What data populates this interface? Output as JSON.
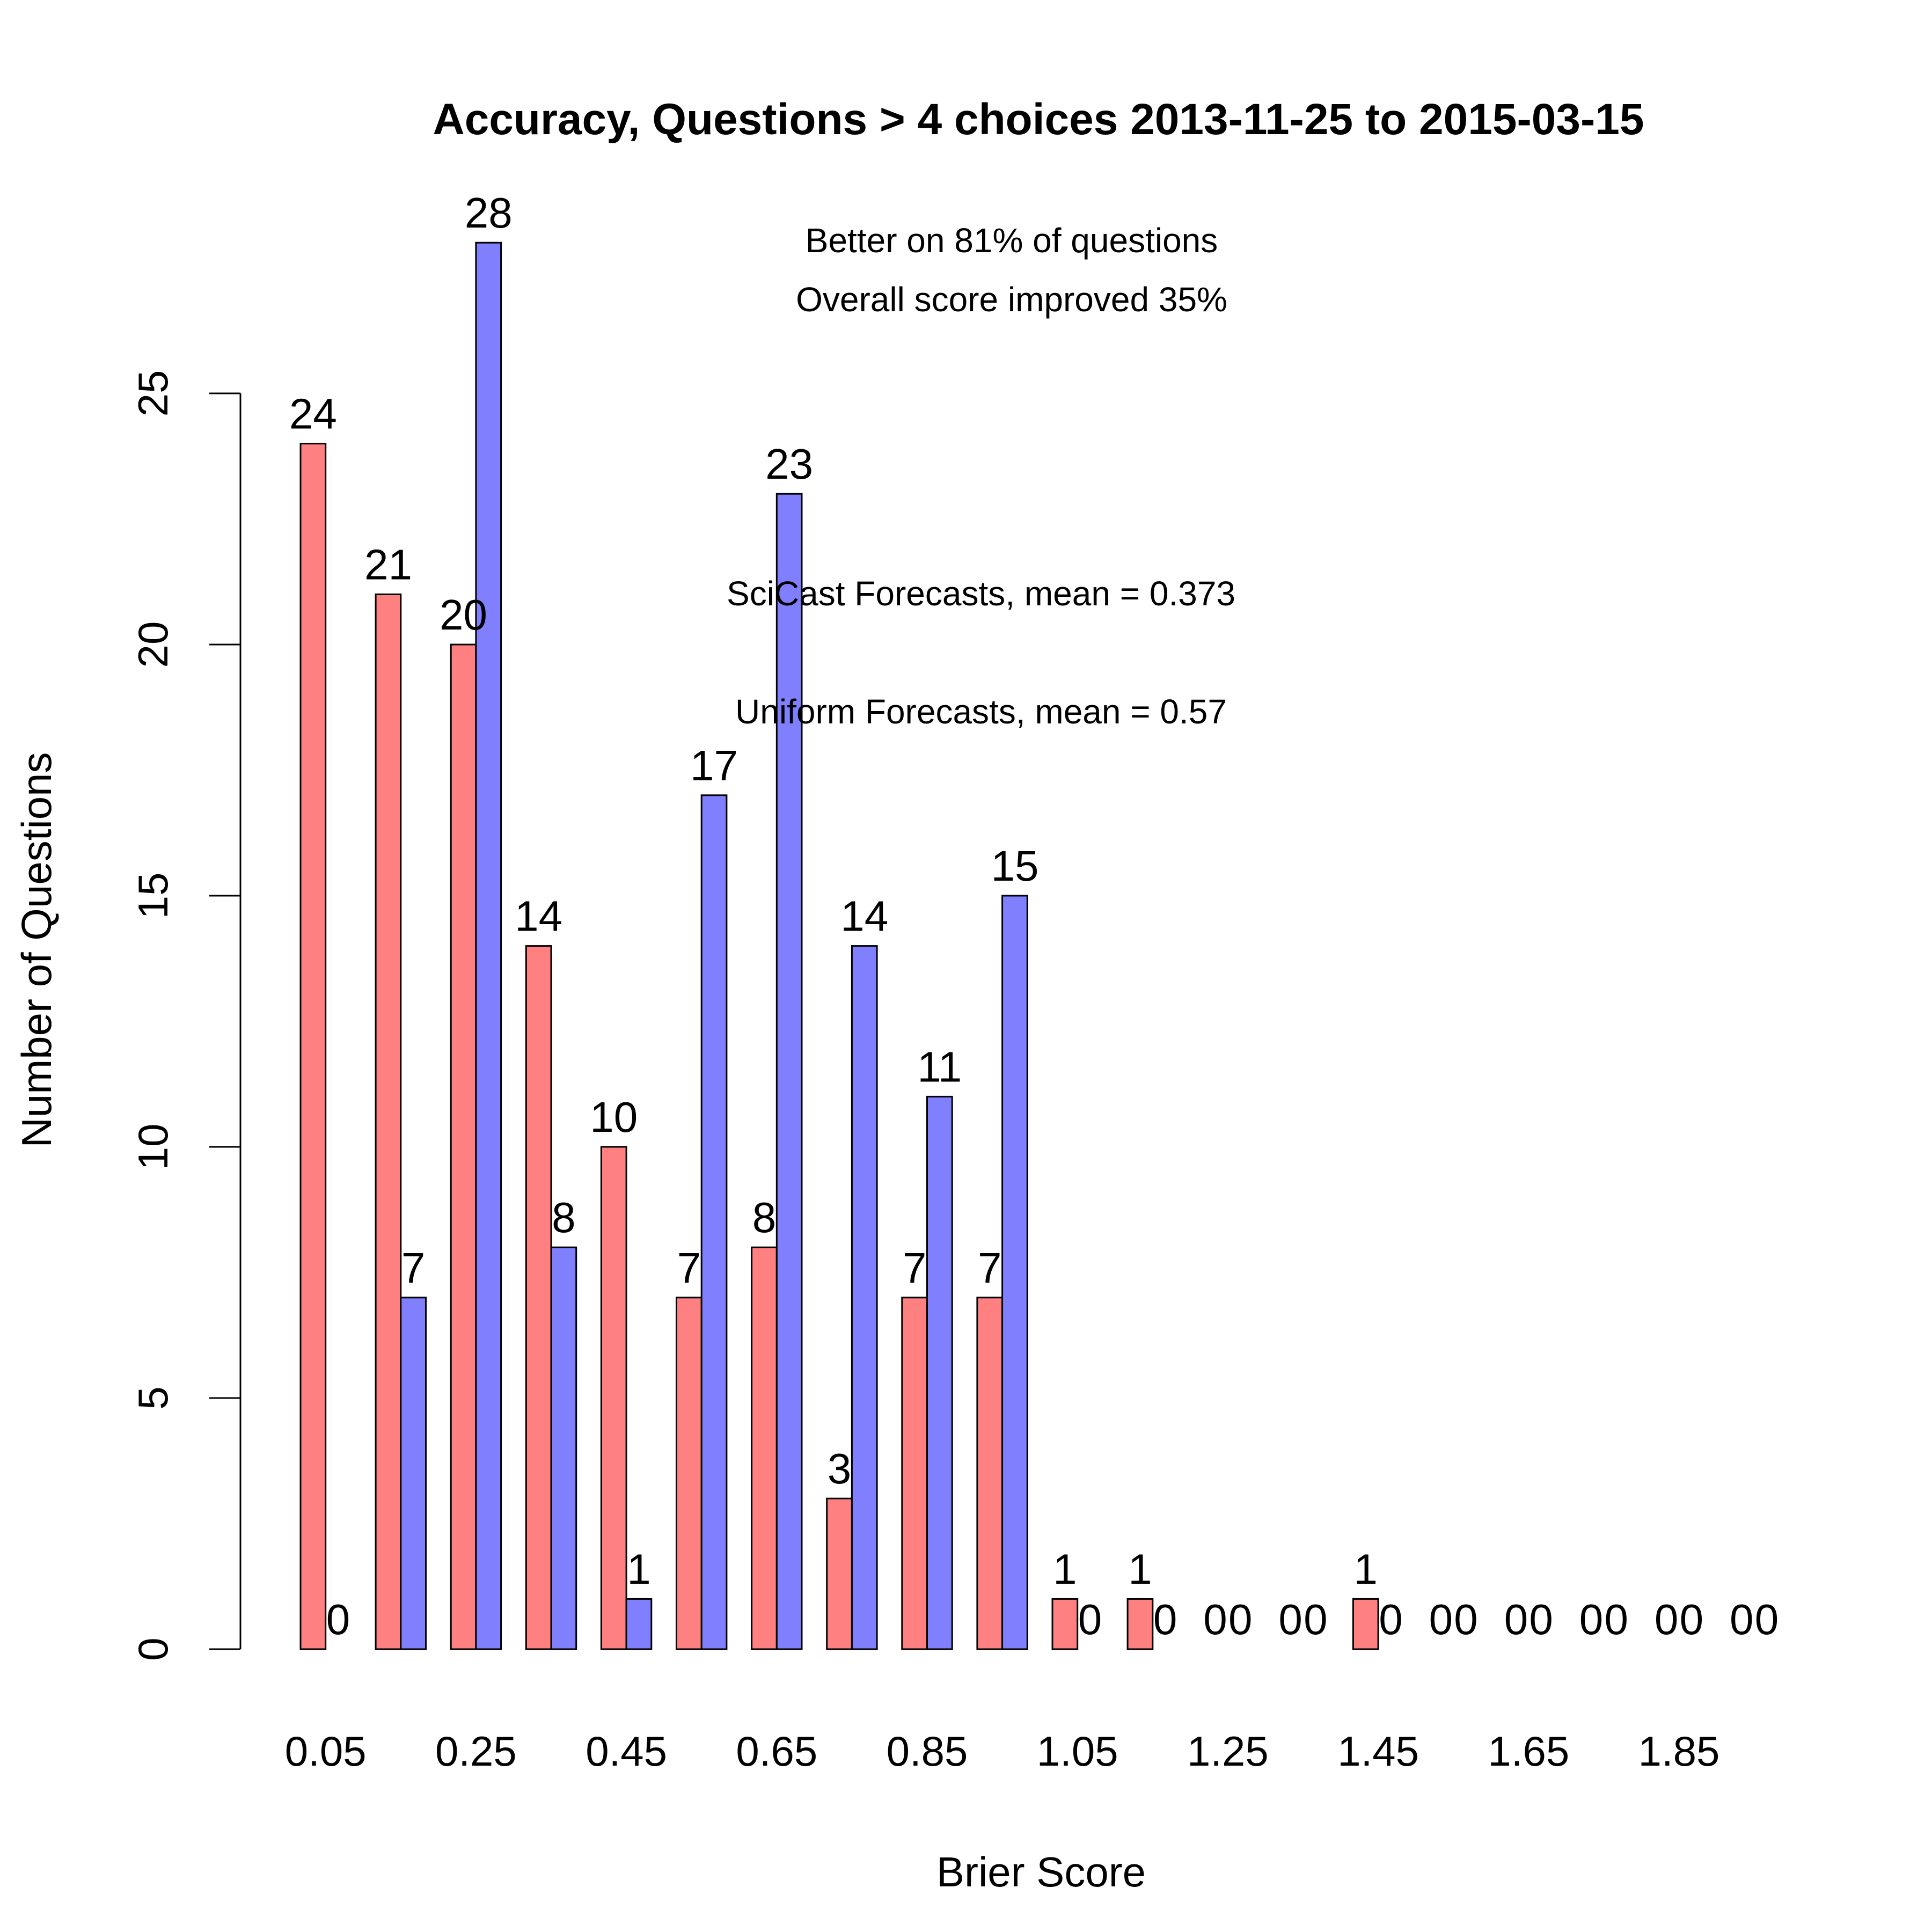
{
  "chart_data": {
    "type": "bar",
    "title": "Accuracy, Questions > 4 choices 2013-11-25 to 2015-03-15",
    "xlabel": "Brier Score",
    "ylabel": "Number of Questions",
    "ylim": [
      0,
      28
    ],
    "yticks": [
      0,
      5,
      10,
      15,
      20,
      25
    ],
    "grid": false,
    "categories": [
      0.05,
      0.15,
      0.25,
      0.35,
      0.45,
      0.55,
      0.65,
      0.75,
      0.85,
      0.95,
      1.05,
      1.15,
      1.25,
      1.35,
      1.45,
      1.55,
      1.65,
      1.75,
      1.85,
      1.95
    ],
    "xtick_labels": [
      "0.05",
      "0.25",
      "0.45",
      "0.65",
      "0.85",
      "1.05",
      "1.25",
      "1.45",
      "1.65",
      "1.85"
    ],
    "series": [
      {
        "name": "SciCast Forecasts, mean = 0.373",
        "color": "#FF8080",
        "values": [
          24,
          21,
          20,
          14,
          10,
          7,
          8,
          3,
          7,
          7,
          1,
          1,
          0,
          0,
          1,
          0,
          0,
          0,
          0,
          0
        ]
      },
      {
        "name": "Uniform Forecasts, mean = 0.57",
        "color": "#8080FF",
        "values": [
          0,
          7,
          28,
          8,
          1,
          17,
          23,
          14,
          11,
          15,
          0,
          0,
          0,
          0,
          0,
          0,
          0,
          0,
          0,
          0
        ]
      }
    ],
    "annotations": [
      "Better on 81% of questions",
      "Overall score improved 35%"
    ],
    "legend_colors": {
      "scicast": "#EE5A5A",
      "uniform": "#6868F0"
    }
  }
}
